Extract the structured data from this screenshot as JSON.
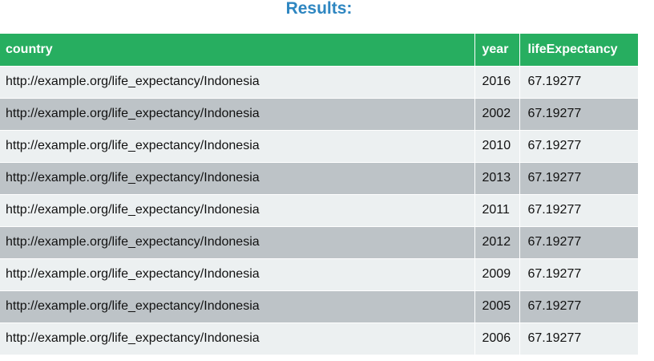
{
  "title": "Results:",
  "table": {
    "headers": [
      "country",
      "year",
      "lifeExpectancy"
    ],
    "rows": [
      [
        "http://example.org/life_expectancy/Indonesia",
        "2016",
        "67.19277"
      ],
      [
        "http://example.org/life_expectancy/Indonesia",
        "2002",
        "67.19277"
      ],
      [
        "http://example.org/life_expectancy/Indonesia",
        "2010",
        "67.19277"
      ],
      [
        "http://example.org/life_expectancy/Indonesia",
        "2013",
        "67.19277"
      ],
      [
        "http://example.org/life_expectancy/Indonesia",
        "2011",
        "67.19277"
      ],
      [
        "http://example.org/life_expectancy/Indonesia",
        "2012",
        "67.19277"
      ],
      [
        "http://example.org/life_expectancy/Indonesia",
        "2009",
        "67.19277"
      ],
      [
        "http://example.org/life_expectancy/Indonesia",
        "2005",
        "67.19277"
      ],
      [
        "http://example.org/life_expectancy/Indonesia",
        "2006",
        "67.19277"
      ]
    ]
  },
  "colors": {
    "title": "#2e86c1",
    "header_bg": "#27ae60",
    "row_odd_bg": "#ecf0f1",
    "row_even_bg": "#bdc3c7"
  }
}
